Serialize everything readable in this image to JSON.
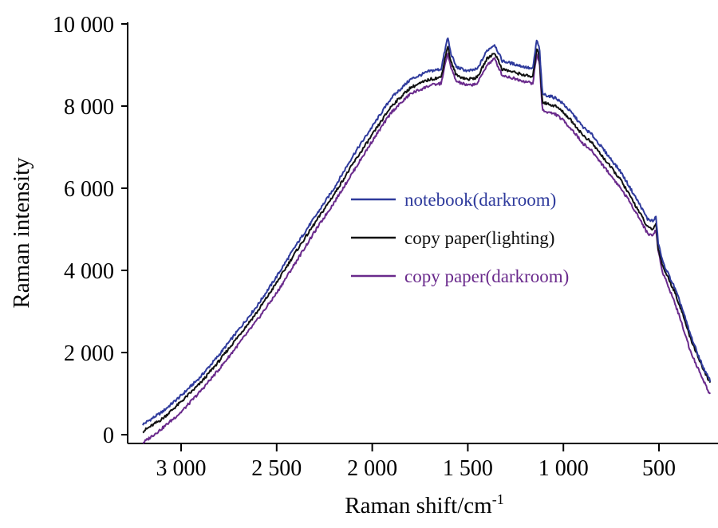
{
  "chart_data": {
    "type": "line",
    "xlabel": "Raman shift/cm",
    "xlabel_sup": "-1",
    "ylabel": "Raman intensity",
    "x_reversed": true,
    "xlim": [
      3200,
      220
    ],
    "ylim": [
      0,
      10000
    ],
    "x_ticks": [
      3000,
      2500,
      2000,
      1500,
      1000,
      500
    ],
    "x_tick_labels": [
      "3 000",
      "2 500",
      "2 000",
      "1 500",
      "1 000",
      "500"
    ],
    "y_ticks": [
      0,
      2000,
      4000,
      6000,
      8000,
      10000
    ],
    "y_tick_labels": [
      "0",
      "2 000",
      "4 000",
      "6 000",
      "8 000",
      "10 000"
    ],
    "grid": false,
    "legend_position": "center-right",
    "series": [
      {
        "name": "notebook(darkroom)",
        "color": "#2e3a9c",
        "x": [
          3200,
          3100,
          3000,
          2900,
          2800,
          2700,
          2600,
          2500,
          2400,
          2300,
          2200,
          2100,
          2000,
          1900,
          1800,
          1700,
          1640,
          1605,
          1590,
          1560,
          1500,
          1450,
          1400,
          1360,
          1320,
          1280,
          1240,
          1200,
          1160,
          1140,
          1125,
          1110,
          1080,
          1040,
          1000,
          950,
          900,
          850,
          800,
          750,
          700,
          650,
          600,
          560,
          530,
          515,
          505,
          480,
          450,
          420,
          380,
          340,
          300,
          260,
          230
        ],
        "y": [
          250,
          550,
          950,
          1400,
          1950,
          2550,
          3150,
          3850,
          4600,
          5300,
          6000,
          6800,
          7500,
          8200,
          8650,
          8850,
          8900,
          9680,
          9300,
          8950,
          8850,
          8900,
          9350,
          9500,
          9100,
          9050,
          9000,
          8950,
          8900,
          9600,
          9400,
          8300,
          8250,
          8200,
          8050,
          7800,
          7500,
          7300,
          7000,
          6700,
          6400,
          6000,
          5600,
          5250,
          5200,
          5300,
          4700,
          4200,
          3900,
          3600,
          3100,
          2500,
          2000,
          1550,
          1300
        ]
      },
      {
        "name": "copy paper(lighting)",
        "color": "#111111",
        "x": [
          3200,
          3100,
          3000,
          2900,
          2800,
          2700,
          2600,
          2500,
          2400,
          2300,
          2200,
          2100,
          2000,
          1900,
          1800,
          1700,
          1640,
          1605,
          1590,
          1560,
          1500,
          1450,
          1400,
          1360,
          1320,
          1280,
          1240,
          1200,
          1160,
          1140,
          1125,
          1110,
          1080,
          1040,
          1000,
          950,
          900,
          850,
          800,
          750,
          700,
          650,
          600,
          560,
          530,
          515,
          505,
          480,
          450,
          420,
          380,
          340,
          300,
          260,
          230
        ],
        "y": [
          80,
          380,
          800,
          1250,
          1800,
          2400,
          3000,
          3700,
          4450,
          5150,
          5850,
          6600,
          7300,
          8000,
          8450,
          8650,
          8700,
          9480,
          9100,
          8750,
          8650,
          8700,
          9150,
          9300,
          8900,
          8850,
          8800,
          8750,
          8700,
          9400,
          9200,
          8100,
          8050,
          8000,
          7850,
          7600,
          7300,
          7100,
          6800,
          6500,
          6200,
          5800,
          5400,
          5050,
          5000,
          5150,
          4550,
          4100,
          3800,
          3500,
          3000,
          2400,
          1950,
          1500,
          1250
        ]
      },
      {
        "name": "copy paper(darkroom)",
        "color": "#6a2a8c",
        "x": [
          3200,
          3100,
          3000,
          2900,
          2800,
          2700,
          2600,
          2500,
          2400,
          2300,
          2200,
          2100,
          2000,
          1900,
          1800,
          1700,
          1640,
          1605,
          1590,
          1560,
          1500,
          1450,
          1400,
          1360,
          1320,
          1280,
          1240,
          1200,
          1160,
          1140,
          1125,
          1110,
          1080,
          1040,
          1000,
          950,
          900,
          850,
          800,
          750,
          700,
          650,
          600,
          560,
          530,
          515,
          505,
          480,
          450,
          420,
          380,
          340,
          300,
          260,
          230
        ],
        "y": [
          -200,
          150,
          550,
          1050,
          1600,
          2200,
          2800,
          3450,
          4200,
          4950,
          5650,
          6400,
          7150,
          7850,
          8300,
          8500,
          8550,
          9300,
          8950,
          8600,
          8500,
          8550,
          9000,
          9150,
          8750,
          8700,
          8650,
          8600,
          8550,
          9250,
          9050,
          7900,
          7850,
          7800,
          7650,
          7400,
          7100,
          6900,
          6600,
          6300,
          6000,
          5650,
          5250,
          4900,
          4850,
          5000,
          4500,
          3950,
          3600,
          3250,
          2700,
          2100,
          1650,
          1250,
          950
        ]
      }
    ]
  }
}
